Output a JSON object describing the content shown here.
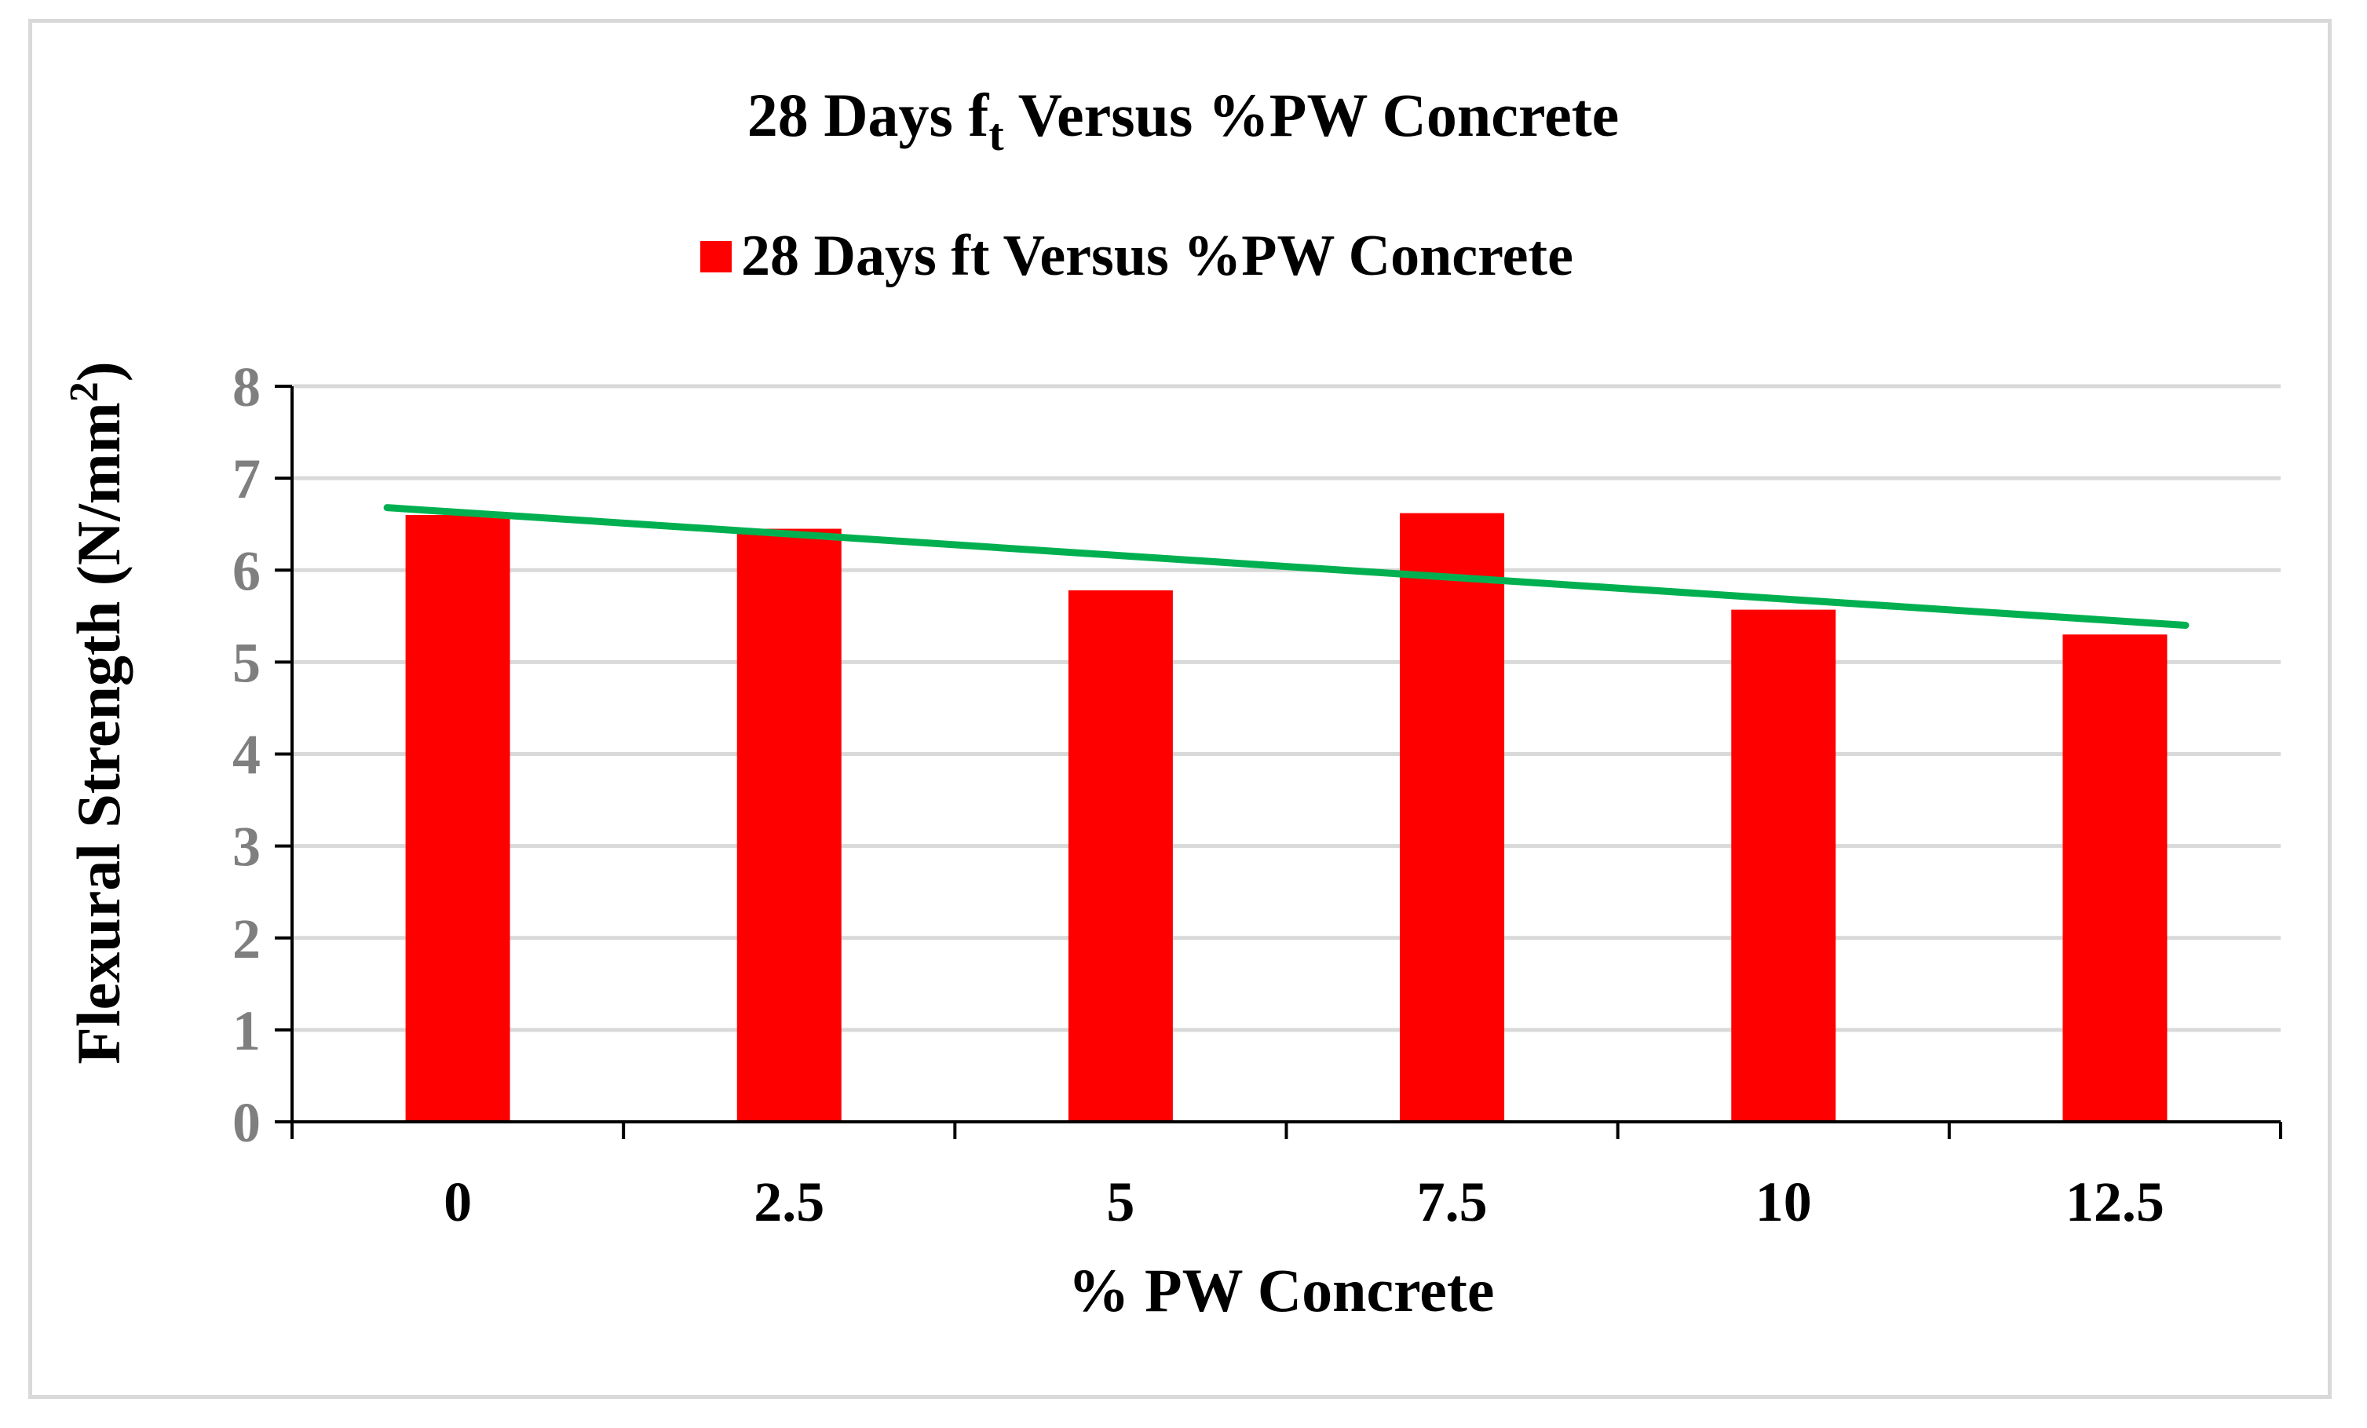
{
  "chart_data": {
    "type": "bar",
    "title": {
      "main_prefix": "28 Days f",
      "main_subscript": "t",
      "main_suffix": " Versus %PW Concrete"
    },
    "categories": [
      "0",
      "2.5",
      "5",
      "7.5",
      "10",
      "12.5"
    ],
    "series": [
      {
        "name": "28 Days ft Versus %PW Concrete",
        "color": "#ff0000",
        "values": [
          6.6,
          6.45,
          5.78,
          6.62,
          5.57,
          5.3
        ]
      }
    ],
    "trendline": {
      "type": "linear",
      "color": "#00b050",
      "start": 6.68,
      "end": 5.4
    },
    "xlabel": "% PW Concrete",
    "ylabel": {
      "prefix": "Flexural Strength (N/mm",
      "superscript": "2",
      "suffix": ")"
    },
    "ylim": [
      0,
      8
    ],
    "yticks": [
      "0",
      "1",
      "2",
      "3",
      "4",
      "5",
      "6",
      "7",
      "8"
    ],
    "grid": true,
    "legend_position": "top"
  }
}
